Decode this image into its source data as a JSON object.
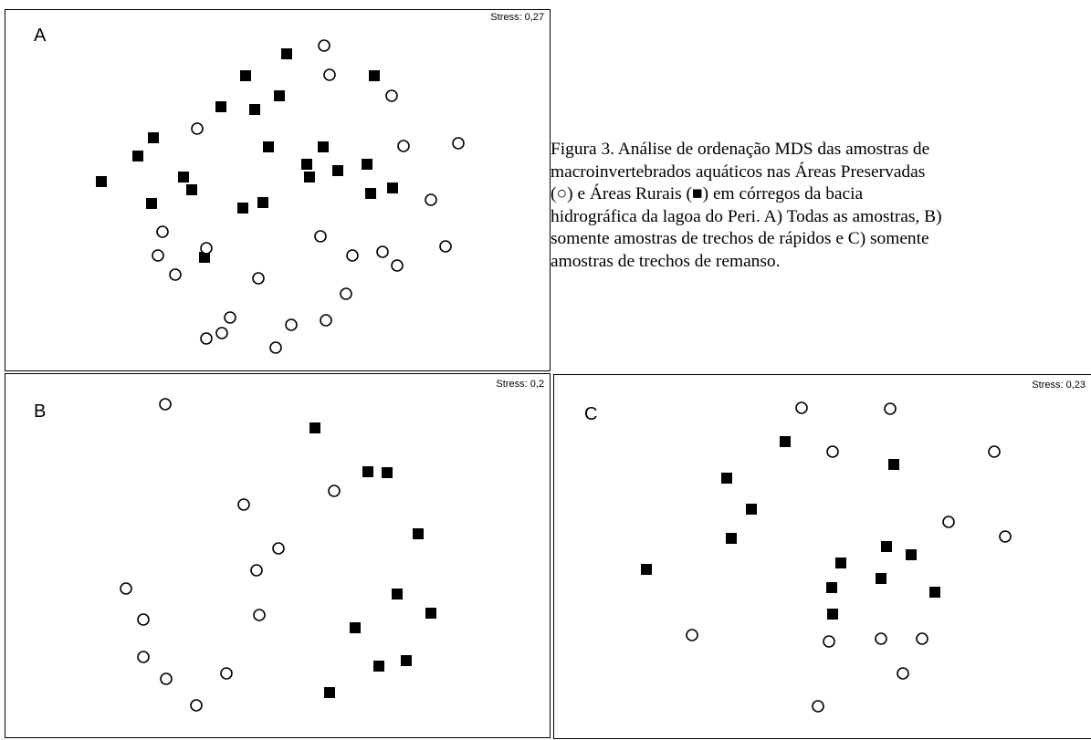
{
  "caption": {
    "lines": [
      "Figura 3. Análise de ordenação MDS das amostras de",
      "macroinvertebrados aquáticos nas Áreas Preservadas",
      "(○) e Áreas Rurais (■) em córregos da bacia",
      "hidrográfica da lagoa do Peri. A) Todas as amostras, B)",
      "somente amostras de trechos de rápidos e C) somente",
      "amostras de trechos de remanso."
    ]
  },
  "chart_data": [
    {
      "type": "scatter",
      "panel": "A",
      "stress_label": "Stress: 0,27",
      "series": [
        {
          "marker": "square-filled",
          "points": [
            [
              308,
              48
            ],
            [
              263,
              72
            ],
            [
              404,
              72
            ],
            [
              300,
              94
            ],
            [
              236,
              106
            ],
            [
              273,
              109
            ],
            [
              162,
              140
            ],
            [
              288,
              150
            ],
            [
              348,
              150
            ],
            [
              145,
              160
            ],
            [
              330,
              169
            ],
            [
              396,
              169
            ],
            [
              364,
              176
            ],
            [
              333,
              183
            ],
            [
              195,
              183
            ],
            [
              204,
              197
            ],
            [
              424,
              195
            ],
            [
              400,
              201
            ],
            [
              105,
              188
            ],
            [
              160,
              212
            ],
            [
              282,
              211
            ],
            [
              260,
              217
            ],
            [
              218,
              271
            ]
          ]
        },
        {
          "marker": "circle-open",
          "points": [
            [
              349,
              39
            ],
            [
              355,
              71
            ],
            [
              423,
              94
            ],
            [
              210,
              130
            ],
            [
              436,
              149
            ],
            [
              496,
              146
            ],
            [
              466,
              208
            ],
            [
              172,
              243
            ],
            [
              345,
              248
            ],
            [
              220,
              261
            ],
            [
              167,
              269
            ],
            [
              380,
              269
            ],
            [
              413,
              265
            ],
            [
              482,
              259
            ],
            [
              429,
              280
            ],
            [
              186,
              290
            ],
            [
              277,
              294
            ],
            [
              373,
              311
            ],
            [
              246,
              337
            ],
            [
              313,
              345
            ],
            [
              351,
              340
            ],
            [
              237,
              354
            ],
            [
              220,
              360
            ],
            [
              296,
              370
            ]
          ]
        }
      ]
    },
    {
      "type": "scatter",
      "panel": "B",
      "stress_label": "Stress: 0,2",
      "series": [
        {
          "marker": "square-filled",
          "points": [
            [
              339,
              59
            ],
            [
              397,
              107
            ],
            [
              418,
              108
            ],
            [
              452,
              175
            ],
            [
              429,
              241
            ],
            [
              466,
              262
            ],
            [
              383,
              278
            ],
            [
              439,
              314
            ],
            [
              409,
              320
            ],
            [
              355,
              349
            ]
          ]
        },
        {
          "marker": "circle-open",
          "points": [
            [
              175,
              33
            ],
            [
              360,
              128
            ],
            [
              261,
              143
            ],
            [
              299,
              191
            ],
            [
              275,
              215
            ],
            [
              132,
              235
            ],
            [
              278,
              264
            ],
            [
              151,
              269
            ],
            [
              151,
              310
            ],
            [
              242,
              328
            ],
            [
              176,
              334
            ],
            [
              209,
              363
            ]
          ]
        }
      ]
    },
    {
      "type": "scatter",
      "panel": "C",
      "stress_label": "Stress: 0,23",
      "series": [
        {
          "marker": "square-filled",
          "points": [
            [
              253,
              73
            ],
            [
              189,
              113
            ],
            [
              216,
              147
            ],
            [
              194,
              179
            ],
            [
              101,
              213
            ],
            [
              372,
              98
            ],
            [
              364,
              188
            ],
            [
              314,
              206
            ],
            [
              391,
              197
            ],
            [
              358,
              223
            ],
            [
              304,
              233
            ],
            [
              417,
              238
            ],
            [
              305,
              262
            ]
          ]
        },
        {
          "marker": "circle-open",
          "points": [
            [
              271,
              36
            ],
            [
              368,
              37
            ],
            [
              305,
              84
            ],
            [
              482,
              84
            ],
            [
              432,
              161
            ],
            [
              494,
              177
            ],
            [
              151,
              285
            ],
            [
              301,
              292
            ],
            [
              358,
              289
            ],
            [
              403,
              289
            ],
            [
              382,
              327
            ],
            [
              289,
              363
            ]
          ]
        }
      ]
    }
  ]
}
